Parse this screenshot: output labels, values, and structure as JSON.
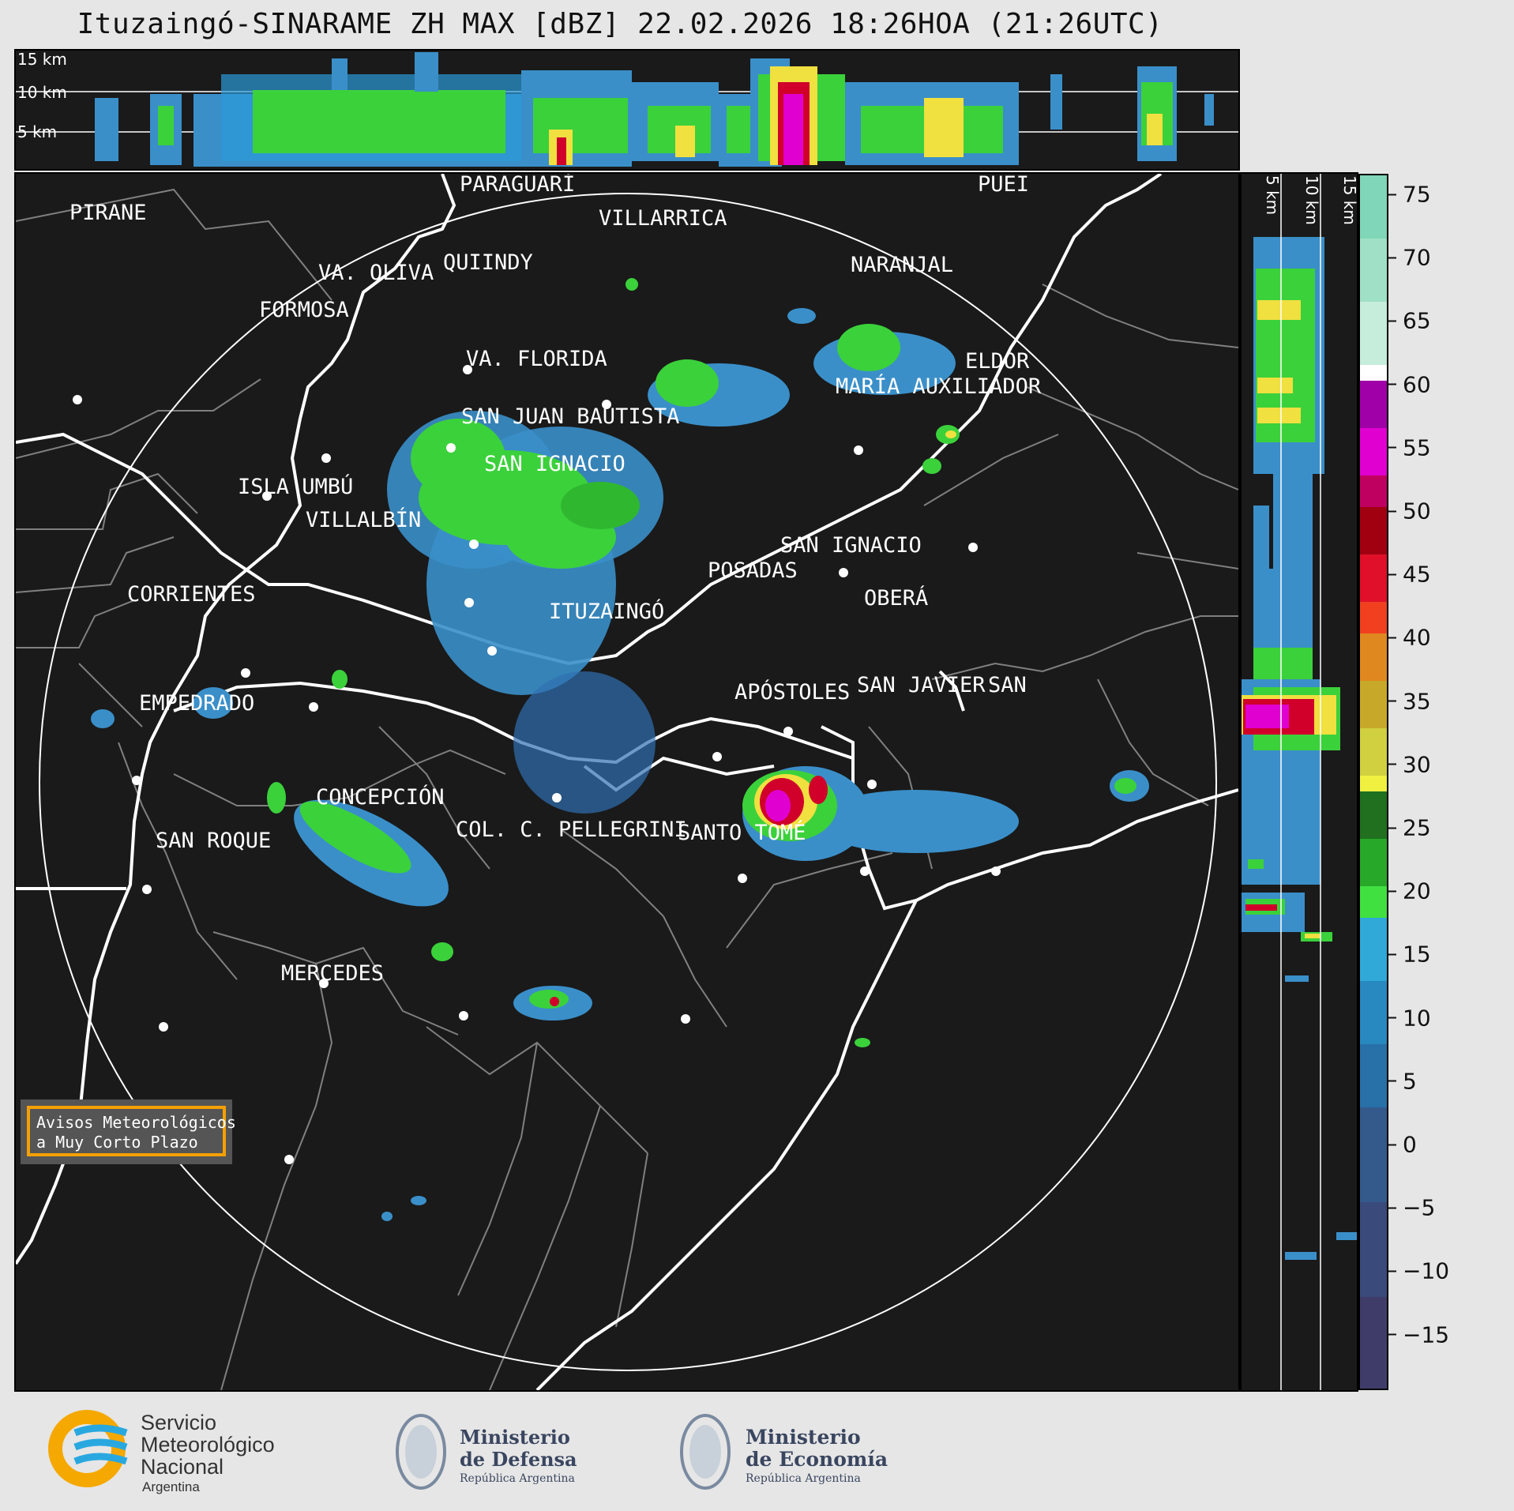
{
  "title": "Ituzaingó-SINARAME ZH MAX [dBZ] 22.02.2026 18:26HOA (21:26UTC)",
  "top_panel": {
    "height_labels": [
      "15 km",
      "10 km",
      "5 km"
    ]
  },
  "side_panel": {
    "height_labels": [
      "5 km",
      "10 km",
      "15 km"
    ]
  },
  "colorbar": {
    "unit": "dBZ",
    "ticks": [
      "75",
      "70",
      "65",
      "60",
      "55",
      "50",
      "45",
      "40",
      "35",
      "30",
      "25",
      "20",
      "15",
      "10",
      "5",
      "0",
      "−5",
      "−10",
      "−15"
    ]
  },
  "cities": [
    "PIRANE",
    "PARAGUARÍ",
    "VILLARRICA",
    "VA. OLIVA",
    "QUIINDY",
    "NARANJAL",
    "FORMOSA",
    "VA. FLORIDA",
    "ELDOR",
    "MARÍA AUXILIADOR",
    "SAN JUAN BAUTISTA",
    "SAN IGNACIO",
    "ISLA UMBÚ",
    "VILLALBÍN",
    "SAN IGNACIO",
    "POSADAS",
    "CORRIENTES",
    "ITUZAINGÓ",
    "OBERÁ",
    "APÓSTOLES",
    "SAN JAVIER",
    "SAN",
    "EMPEDRADO",
    "CONCEPCIÓN",
    "COL. C. PELLEGRINI",
    "SANTO TOMÉ",
    "SAN ROQUE",
    "MERCEDES",
    "PUEI"
  ],
  "warning_box": {
    "line1": "Avisos Meteorológicos",
    "line2": "a Muy Corto Plazo"
  },
  "logos": {
    "smn": {
      "line1": "Servicio",
      "line2": "Meteorológico",
      "line3": "Nacional",
      "line4": "Argentina"
    },
    "defensa": {
      "line1": "Ministerio",
      "line2": "de Defensa",
      "line3": "República Argentina"
    },
    "economia": {
      "line1": "Ministerio",
      "line2": "de Economía",
      "line3": "República Argentina"
    }
  },
  "colors": {
    "map_background": "#1a1a1a",
    "rain_light_blue": "#3a8fc9",
    "rain_green": "#3bd13b",
    "rain_yellow": "#f0e040",
    "rain_red": "#d0002a",
    "rain_magenta": "#e000d0",
    "warning_border": "#f5a000",
    "smn_orange": "#f5a800",
    "smn_blue": "#29a8e0"
  }
}
